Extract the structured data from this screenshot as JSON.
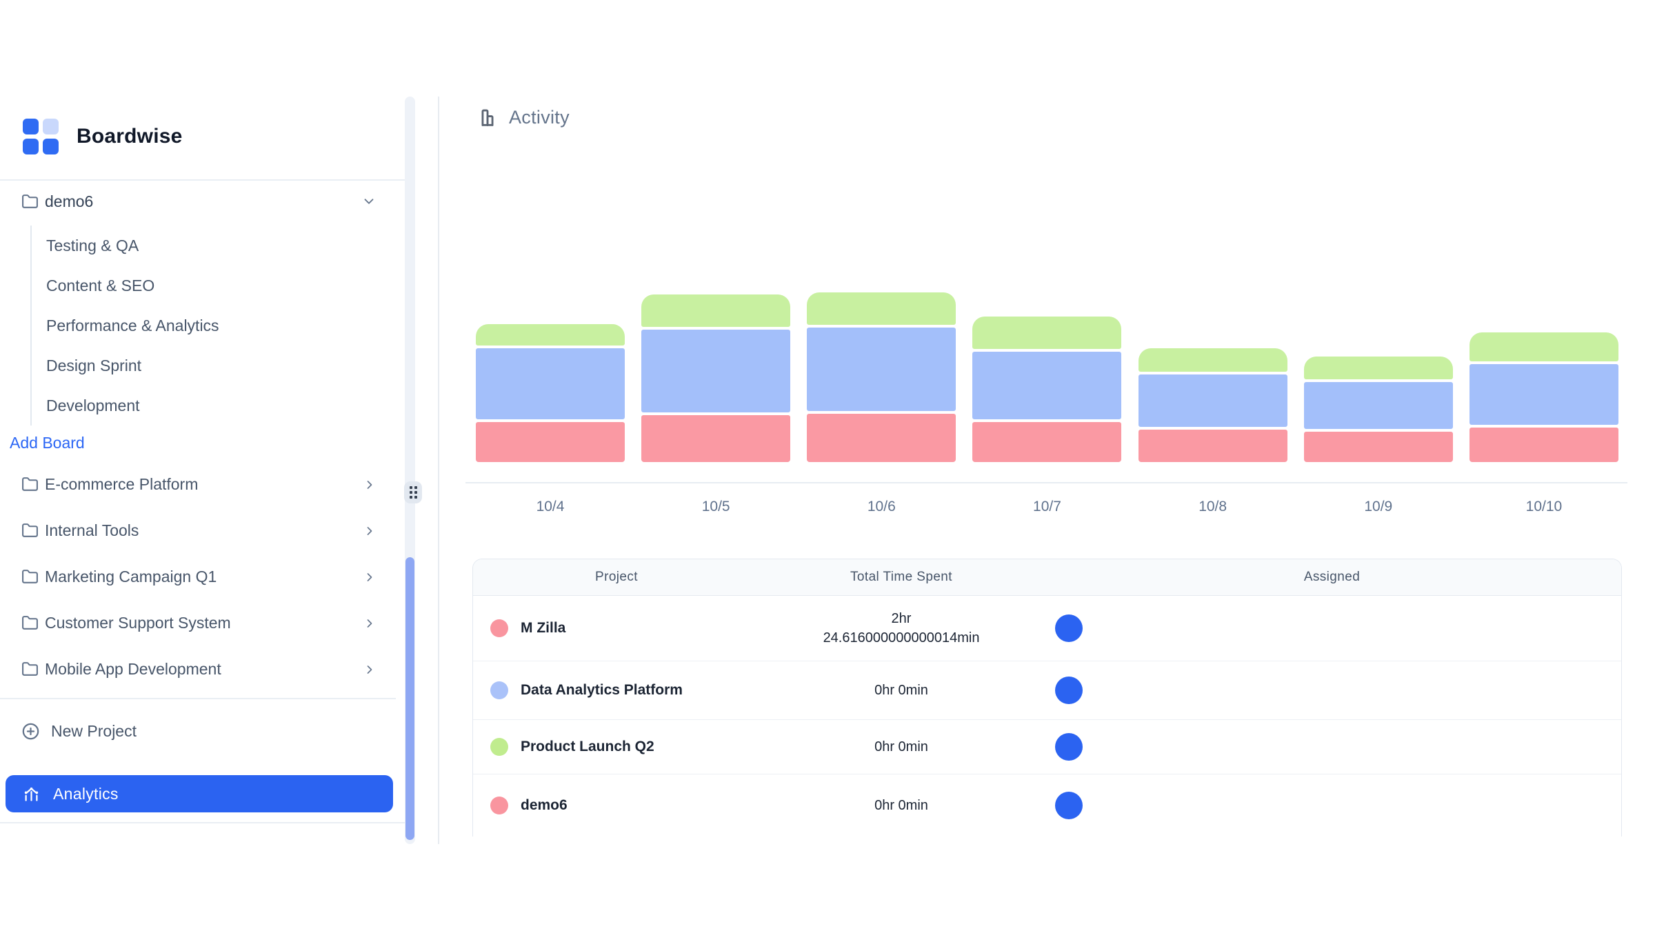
{
  "app": {
    "title": "Boardwise"
  },
  "colors": {
    "accent_blue": "#2b63f1",
    "logo_blue": "#2f6bf3",
    "logo_light_blue": "#c9d8fc",
    "sidebar_text": "#475569",
    "muted_text": "#64748b",
    "scrollbar_thumb": "#8ea7f3",
    "bar_red": "#fa99a3",
    "bar_blue": "#a3bffa",
    "bar_green": "#c8f0a0"
  },
  "sidebar": {
    "project_tree": {
      "label": "demo6",
      "expanded": true,
      "boards": [
        "Testing & QA",
        "Content & SEO",
        "Performance & Analytics",
        "Design Sprint",
        "Development"
      ],
      "add_board_label": "Add Board"
    },
    "projects": [
      "E-commerce Platform",
      "Internal Tools",
      "Marketing Campaign Q1",
      "Customer Support System",
      "Mobile App Development"
    ],
    "new_project_label": "New Project",
    "analytics_label": "Analytics"
  },
  "main": {
    "section_title": "Activity",
    "table": {
      "columns": [
        "Project",
        "Total Time Spent",
        "Assigned"
      ],
      "avatar_color": "#2b63f1",
      "rows": [
        {
          "project": "M Zilla",
          "dot_color": "#f9959f",
          "time_lines": [
            "2hr",
            "24.616000000000014min"
          ]
        },
        {
          "project": "Data Analytics Platform",
          "dot_color": "#aac2f9",
          "time_lines": [
            "0hr 0min"
          ]
        },
        {
          "project": "Product Launch Q2",
          "dot_color": "#c0ec8e",
          "time_lines": [
            "0hr 0min"
          ]
        },
        {
          "project": "demo6",
          "dot_color": "#f9959f",
          "time_lines": [
            "0hr 0min"
          ]
        }
      ]
    }
  },
  "chart_data": {
    "type": "bar",
    "stacked": true,
    "title": "Activity",
    "xlabel": "",
    "ylabel": "",
    "y_axis_shown": false,
    "grid": false,
    "legend_position": "none",
    "categories": [
      "10/4",
      "10/5",
      "10/6",
      "10/7",
      "10/8",
      "10/9",
      "10/10"
    ],
    "units": "relative height (no y-axis ticks shown in UI)",
    "series": [
      {
        "name": "M Zilla",
        "color": "#fa99a3",
        "stack_order": "bottom",
        "values": [
          58,
          68,
          70,
          58,
          47,
          44,
          50
        ]
      },
      {
        "name": "Data Analytics Platform",
        "color": "#a3bffa",
        "stack_order": "middle",
        "values": [
          103,
          120,
          121,
          98,
          76,
          68,
          88
        ]
      },
      {
        "name": "Product Launch Q2",
        "color": "#c8f0a0",
        "stack_order": "top",
        "values": [
          31,
          47,
          47,
          47,
          34,
          33,
          42
        ]
      }
    ]
  }
}
